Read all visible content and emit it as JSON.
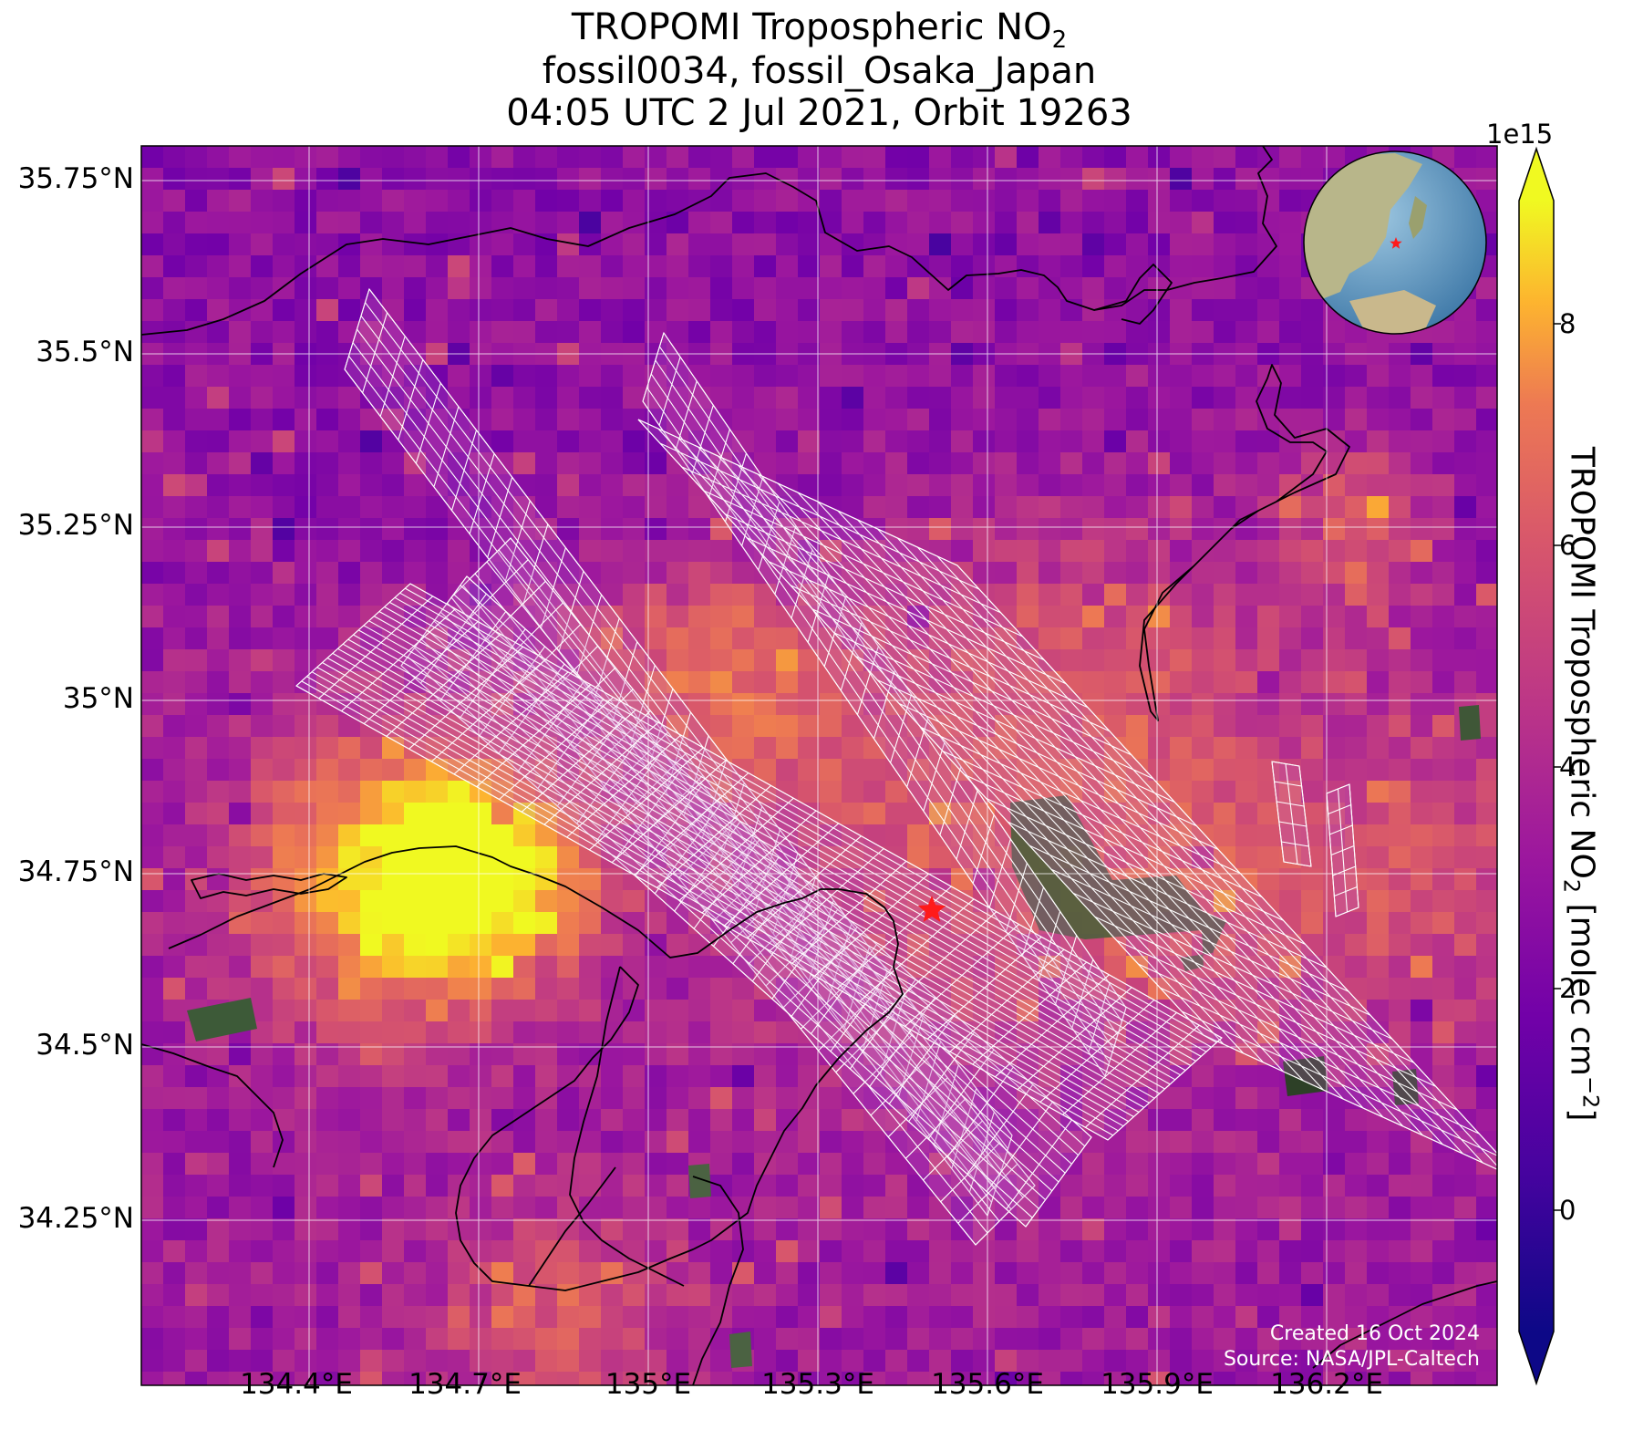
{
  "title": {
    "line1_main": "TROPOMI Tropospheric NO",
    "line1_sub": "2",
    "line2": "fossil0034, fossil_Osaka_Japan",
    "line3": "04:05 UTC 2 Jul 2021, Orbit 19263"
  },
  "map": {
    "lat_labels": [
      "35.75°N",
      "35.5°N",
      "35.25°N",
      "35°N",
      "34.75°N",
      "34.5°N",
      "34.25°N"
    ],
    "lon_labels": [
      "134.4°E",
      "134.7°E",
      "135°E",
      "135.3°E",
      "135.6°E",
      "135.9°E",
      "136.2°E"
    ],
    "target_marker": "red-star",
    "inset": "globe-east-asia",
    "grid": true
  },
  "colorbar": {
    "colormap": "plasma",
    "multiplier": "1e15",
    "ticks": [
      "0",
      "2",
      "4",
      "6",
      "8"
    ],
    "label_main": "TROPOMI Tropospheric NO",
    "label_sub": "2",
    "label_unit": " [molec cm",
    "label_exp": "−2",
    "label_end": "]"
  },
  "credit": {
    "created": "Created 16 Oct 2024",
    "source": "Source: NASA/JPL-Caltech"
  },
  "colors": {
    "marker": "#ff1a1a",
    "grid": "#ffffff",
    "coastline": "#000000",
    "target_footprints": "#ffffff"
  }
}
